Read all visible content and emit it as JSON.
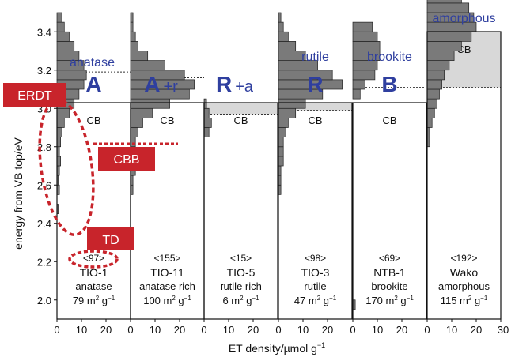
{
  "chart_data": {
    "type": "bar",
    "orientation": "horizontal",
    "ylabel": "energy from VB top/eV",
    "xlabel_text": "ET density/µmol g",
    "xlabel_sup": "−1",
    "ylim": [
      1.9,
      3.5
    ],
    "yticks": [
      "2.0",
      "2.2",
      "2.4",
      "2.6",
      "2.8",
      "3.0",
      "3.2",
      "3.4"
    ],
    "ytick_values": [
      2.0,
      2.2,
      2.4,
      2.6,
      2.8,
      3.0,
      3.2,
      3.4
    ],
    "xlim": [
      0,
      30
    ],
    "xticks": [
      "0",
      "10",
      "20"
    ],
    "xtick_values": [
      0,
      10,
      20
    ],
    "last_xtick": "30",
    "bin_width_ev": 0.05,
    "cb_label": "CB",
    "colors": {
      "bar": "#7a7a7a",
      "cb_fill": "#d8d8d8",
      "accent_red": "#c8242b",
      "title_blue": "#2f3f9f"
    },
    "panels": [
      {
        "top_label": "anatase",
        "symbol": "A",
        "suffix": "",
        "count": "<97>",
        "sample": "TIO-1",
        "desc": "anatase",
        "area_num": "79",
        "cb_min": 3.19,
        "bins_start": 2.1,
        "values": [
          0,
          0,
          0,
          0,
          0,
          0,
          0,
          0.5,
          0,
          1,
          0.5,
          1,
          1.5,
          1,
          1.5,
          2,
          3,
          5,
          7,
          9,
          11,
          12,
          11,
          9,
          7,
          5,
          3,
          2
        ]
      },
      {
        "top_label": "",
        "symbol": "A",
        "suffix": "+r",
        "count": "<155>",
        "sample": "TIO-11",
        "desc": "anatase rich",
        "area_num": "100",
        "cb_min": 3.16,
        "bins_start": 2.1,
        "values": [
          0,
          0,
          0,
          0,
          0,
          0,
          0,
          0,
          0,
          1,
          1,
          2,
          2,
          2,
          2,
          3,
          5,
          9,
          16,
          24,
          26,
          22,
          14,
          7,
          3,
          2,
          1,
          1
        ]
      },
      {
        "top_label": "",
        "symbol": "R",
        "suffix": "+a",
        "count": "<15>",
        "sample": "TIO-5",
        "desc": "rutile rich",
        "area_num": "6",
        "cb_min": 2.97,
        "bins_start": 2.1,
        "values": [
          0,
          0,
          0,
          0,
          0,
          0,
          0,
          0,
          0,
          0,
          0,
          0,
          0,
          0,
          0,
          2,
          3,
          2,
          1,
          0,
          0,
          0,
          0,
          0,
          0,
          0,
          0,
          0
        ]
      },
      {
        "top_label": "rutile",
        "symbol": "R",
        "suffix": "",
        "count": "<98>",
        "sample": "TIO-3",
        "desc": "rutile",
        "area_num": "47",
        "cb_min": 2.99,
        "bins_start": 2.1,
        "values": [
          0,
          0,
          0,
          0,
          0,
          0,
          0,
          0,
          0,
          1,
          1,
          1,
          2,
          2,
          2,
          3,
          4,
          7,
          11,
          18,
          26,
          22,
          16,
          11,
          7,
          4,
          2,
          1
        ]
      },
      {
        "top_label": "brookite",
        "symbol": "B",
        "suffix": "",
        "count": "<69>",
        "sample": "NTB-1",
        "desc": "brookite",
        "area_num": "170",
        "cb_min": 3.11,
        "bins_start": 1.95,
        "values": [
          1,
          0,
          0,
          0,
          0,
          0,
          0,
          0,
          0,
          0,
          0,
          0,
          0,
          0,
          0,
          0,
          0,
          0,
          0,
          0,
          0,
          0,
          3,
          5,
          9,
          10,
          11,
          11,
          10,
          8
        ]
      },
      {
        "top_label": "amorphous",
        "symbol": "",
        "suffix": "",
        "count": "<192>",
        "sample": "Wako",
        "desc": "amorphous",
        "area_num": "115",
        "cb_min": 3.11,
        "bins_start": 1.95,
        "values": [
          0,
          0,
          0,
          0,
          0,
          0,
          0,
          0,
          0,
          0,
          0,
          0,
          0,
          0,
          0,
          0,
          0,
          1,
          1,
          2,
          3,
          4,
          5,
          6,
          7,
          9,
          11,
          14,
          18,
          20,
          19,
          17,
          14,
          11,
          8,
          6,
          4,
          3,
          2,
          2,
          1,
          1
        ]
      }
    ],
    "annotations": {
      "erdt": "ERDT",
      "cbb": "CBB",
      "td": "TD"
    },
    "area_unit": "m",
    "area_sup1": "2",
    "area_g": "g",
    "area_sup2": "−1"
  }
}
